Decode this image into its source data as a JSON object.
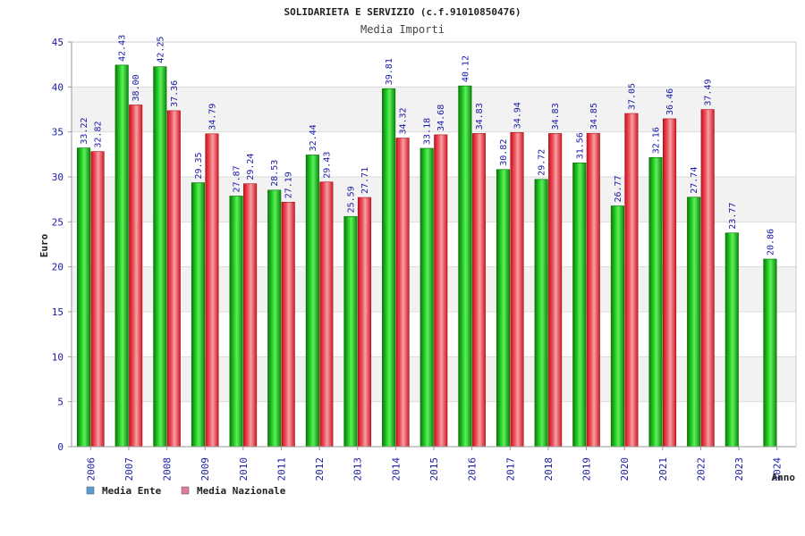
{
  "chart_data": {
    "type": "bar",
    "title": "SOLIDARIETA E SERVIZIO (c.f.91010850476)",
    "subtitle": "Media Importi",
    "xlabel": "Anno",
    "ylabel": "Euro",
    "ylim": [
      0,
      45
    ],
    "yticks": [
      "0",
      "5",
      "10",
      "15",
      "20",
      "25",
      "30",
      "35",
      "40",
      "45"
    ],
    "categories": [
      "2006",
      "2007",
      "2008",
      "2009",
      "2010",
      "2011",
      "2012",
      "2013",
      "2014",
      "2015",
      "2016",
      "2017",
      "2018",
      "2019",
      "2020",
      "2021",
      "2022",
      "2023",
      "2024"
    ],
    "series": [
      {
        "name": "Media Ente",
        "color": "#1db51d",
        "values": [
          33.22,
          42.43,
          42.25,
          29.35,
          27.87,
          28.53,
          32.44,
          25.59,
          39.81,
          33.18,
          40.12,
          30.82,
          29.72,
          31.56,
          26.77,
          32.16,
          27.74,
          23.77,
          20.86
        ],
        "labels": [
          "33.22",
          "42.43",
          "42.25",
          "29.35",
          "27.87",
          "28.53",
          "32.44",
          "25.59",
          "39.81",
          "33.18",
          "40.12",
          "30.82",
          "29.72",
          "31.56",
          "26.77",
          "32.16",
          "27.74",
          "23.77",
          "20.86"
        ]
      },
      {
        "name": "Media Nazionale",
        "color": "#e8323c",
        "values": [
          32.82,
          38.0,
          37.36,
          34.79,
          29.24,
          27.19,
          29.43,
          27.71,
          34.32,
          34.68,
          34.83,
          34.94,
          34.83,
          34.85,
          37.05,
          36.46,
          37.49,
          null,
          null
        ],
        "labels": [
          "32.82",
          "38.00",
          "37.36",
          "34.79",
          "29.24",
          "27.19",
          "29.43",
          "27.71",
          "34.32",
          "34.68",
          "34.83",
          "34.94",
          "34.83",
          "34.85",
          "37.05",
          "36.46",
          "37.49",
          null,
          null
        ]
      }
    ],
    "legend": {
      "position": "bottom-left",
      "items": [
        {
          "label": "Media Ente",
          "swatch_color": "#5b9bd5"
        },
        {
          "label": "Media Nazionale",
          "swatch_color": "#e07aa0"
        }
      ]
    },
    "grid": true
  }
}
